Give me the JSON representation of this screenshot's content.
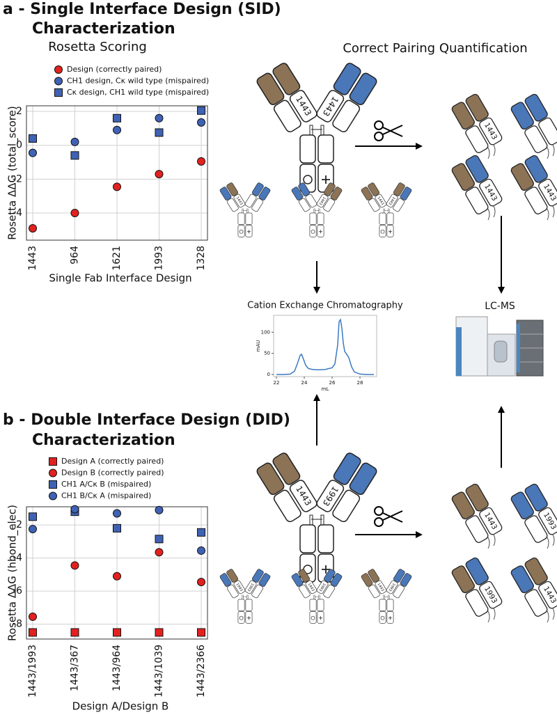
{
  "figure": {
    "panel_a": [
      "a - Single Interface Design (SID)",
      "Characterization"
    ],
    "panel_b": [
      "b - Double Interface Design (DID)",
      "Characterization"
    ],
    "correct_pairing": "Correct Pairing Quantification",
    "lcms": "LC-MS",
    "designs": [
      "1443",
      "1993"
    ]
  },
  "chart_data": [
    {
      "type": "scatter",
      "title": "Rosetta Scoring",
      "x_label": "Single Fab Interface Design",
      "y_label": "Rosetta ΔΔG (total_score)",
      "categories": [
        "1443",
        "964",
        "1621",
        "1993",
        "1328"
      ],
      "ylim": [
        -5.6,
        2.33
      ],
      "yticks": [
        -4,
        -2,
        0,
        2
      ],
      "grid": true,
      "legend": "above",
      "series": [
        {
          "name": "Design (correctly paired)",
          "color": "#e3211e",
          "marker": "circle",
          "values": [
            -4.9,
            -4.0,
            -2.45,
            -1.7,
            -0.95
          ]
        },
        {
          "name": "CH1 design, Cκ wild type (mispaired)",
          "color": "#3f62b5",
          "marker": "circle",
          "values": [
            -0.45,
            0.2,
            0.9,
            1.6,
            1.35
          ]
        },
        {
          "name": "Cκ design, CH1 wild type (mispaired)",
          "color": "#3f62b5",
          "marker": "square",
          "values": [
            0.4,
            -0.6,
            1.6,
            0.75,
            2.05
          ]
        }
      ]
    },
    {
      "type": "scatter",
      "x_label": "Design A/Design B",
      "y_label": "Rosetta ΔΔG (hbond_elec)",
      "categories": [
        "1443/1993",
        "1443/367",
        "1443/964",
        "1443/1039",
        "1443/2366"
      ],
      "ylim": [
        -8.9,
        -0.9
      ],
      "yticks": [
        -8,
        -6,
        -4,
        -2
      ],
      "grid": true,
      "legend": "above",
      "series": [
        {
          "name": "Design A (correctly paired)",
          "color": "#e3211e",
          "marker": "square",
          "values": [
            -8.5,
            -8.5,
            -8.5,
            -8.5,
            -8.5
          ]
        },
        {
          "name": "Design B (correctly paired)",
          "color": "#e3211e",
          "marker": "circle",
          "values": [
            -7.55,
            -4.45,
            -5.1,
            -3.65,
            -5.45
          ]
        },
        {
          "name": "CH1 A/Cκ B (mispaired)",
          "color": "#3f62b5",
          "marker": "square",
          "values": [
            -1.5,
            -1.2,
            -2.2,
            -2.85,
            -2.45
          ]
        },
        {
          "name": "CH1 B/Cκ A (mispaired)",
          "color": "#3f62b5",
          "marker": "circle",
          "values": [
            -2.25,
            -1.05,
            -1.3,
            -1.1,
            -3.55
          ]
        }
      ]
    },
    {
      "type": "line",
      "title": "Cation Exchange Chromatography",
      "x_label": "mL",
      "y_label": "mAU",
      "color": "#3b78c2",
      "xlim": [
        21.8,
        29.2
      ],
      "xticks": [
        22,
        24,
        26,
        28
      ],
      "ylim": [
        -5,
        140
      ],
      "yticks": [
        0,
        50,
        100
      ],
      "x": [
        22,
        22.5,
        23,
        23.3,
        23.5,
        23.7,
        23.8,
        23.9,
        24.1,
        24.3,
        24.6,
        25,
        25.5,
        26,
        26.2,
        26.4,
        26.5,
        26.6,
        26.7,
        26.8,
        26.9,
        27,
        27.2,
        27.4,
        27.6,
        28,
        28.5,
        29
      ],
      "values": [
        0,
        0,
        1,
        8,
        25,
        45,
        48,
        40,
        22,
        14,
        12,
        11,
        12,
        16,
        25,
        70,
        125,
        130,
        110,
        75,
        55,
        50,
        40,
        18,
        6,
        1,
        0,
        0
      ]
    }
  ]
}
